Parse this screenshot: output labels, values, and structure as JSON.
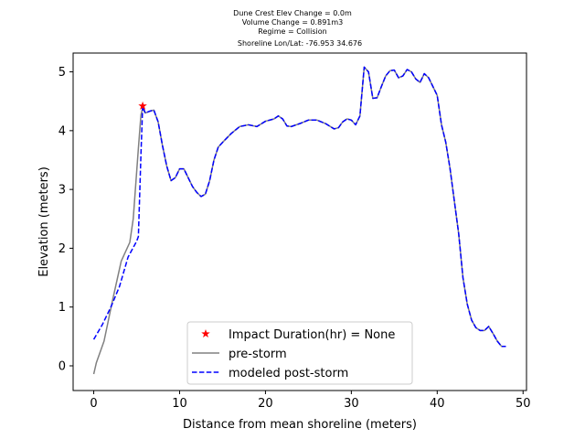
{
  "chart_data": {
    "type": "line",
    "title_lines": [
      "Dune Crest Elev Change = 0.0m",
      "Volume Change = 0.891m3",
      "Regime = Collision",
      "Shoreline Lon/Lat: -76.953 34.676"
    ],
    "xlabel": "Distance from mean shoreline (meters)",
    "ylabel": "Elevation (meters)",
    "xlim": [
      -2.4,
      50.4
    ],
    "ylim": [
      -0.42,
      5.32
    ],
    "xticks": [
      0,
      10,
      20,
      30,
      40,
      50
    ],
    "yticks": [
      0,
      1,
      2,
      3,
      4,
      5
    ],
    "grid": false,
    "legend": {
      "placement": "lower-center",
      "entries": [
        {
          "label": "Impact Duration(hr) = None",
          "marker": "star",
          "color": "#ff0000"
        },
        {
          "label": "pre-storm",
          "style": "solid",
          "color": "#808080"
        },
        {
          "label": "modeled post-storm",
          "style": "dashed",
          "color": "#0000ff"
        }
      ]
    },
    "impact_point": {
      "x": 5.7,
      "y": 4.42
    },
    "series": [
      {
        "name": "pre-storm",
        "color": "#808080",
        "style": "solid",
        "points": [
          [
            0,
            -0.14
          ],
          [
            0.3,
            0.05
          ],
          [
            1.2,
            0.42
          ],
          [
            2.2,
            1.12
          ],
          [
            3.2,
            1.78
          ],
          [
            4.2,
            2.1
          ],
          [
            4.6,
            2.5
          ],
          [
            5.2,
            3.7
          ],
          [
            5.5,
            4.27
          ],
          [
            5.7,
            4.38
          ],
          [
            6.0,
            4.3
          ],
          [
            6.5,
            4.33
          ],
          [
            7.0,
            4.35
          ],
          [
            7.5,
            4.15
          ],
          [
            8.0,
            3.75
          ],
          [
            8.5,
            3.4
          ],
          [
            9.0,
            3.15
          ],
          [
            9.5,
            3.2
          ],
          [
            10.0,
            3.35
          ],
          [
            10.5,
            3.35
          ],
          [
            11.0,
            3.2
          ],
          [
            11.5,
            3.05
          ],
          [
            12.0,
            2.95
          ],
          [
            12.5,
            2.88
          ],
          [
            13.0,
            2.92
          ],
          [
            13.5,
            3.15
          ],
          [
            14.0,
            3.5
          ],
          [
            14.5,
            3.72
          ],
          [
            15.0,
            3.8
          ],
          [
            16.0,
            3.95
          ],
          [
            17.0,
            4.07
          ],
          [
            18.0,
            4.1
          ],
          [
            19.0,
            4.07
          ],
          [
            20.0,
            4.16
          ],
          [
            21.0,
            4.2
          ],
          [
            21.5,
            4.25
          ],
          [
            22.0,
            4.2
          ],
          [
            22.5,
            4.08
          ],
          [
            23.0,
            4.07
          ],
          [
            24.0,
            4.12
          ],
          [
            25.0,
            4.18
          ],
          [
            26.0,
            4.18
          ],
          [
            27.0,
            4.12
          ],
          [
            28.0,
            4.03
          ],
          [
            28.5,
            4.05
          ],
          [
            29.0,
            4.15
          ],
          [
            29.5,
            4.2
          ],
          [
            30.0,
            4.18
          ],
          [
            30.5,
            4.1
          ],
          [
            31.0,
            4.25
          ],
          [
            31.5,
            5.08
          ],
          [
            32.0,
            5.0
          ],
          [
            32.5,
            4.55
          ],
          [
            33.0,
            4.56
          ],
          [
            33.5,
            4.75
          ],
          [
            34.0,
            4.93
          ],
          [
            34.5,
            5.02
          ],
          [
            35.0,
            5.03
          ],
          [
            35.5,
            4.9
          ],
          [
            36.0,
            4.93
          ],
          [
            36.5,
            5.04
          ],
          [
            37.0,
            5.0
          ],
          [
            37.5,
            4.88
          ],
          [
            38.0,
            4.82
          ],
          [
            38.5,
            4.97
          ],
          [
            39.0,
            4.9
          ],
          [
            39.5,
            4.75
          ],
          [
            40.0,
            4.6
          ],
          [
            40.5,
            4.1
          ],
          [
            41.0,
            3.8
          ],
          [
            41.5,
            3.35
          ],
          [
            42.0,
            2.8
          ],
          [
            42.5,
            2.25
          ],
          [
            43.0,
            1.5
          ],
          [
            43.5,
            1.05
          ],
          [
            44.0,
            0.78
          ],
          [
            44.5,
            0.65
          ],
          [
            45.0,
            0.6
          ],
          [
            45.5,
            0.6
          ],
          [
            46.0,
            0.67
          ],
          [
            46.5,
            0.55
          ],
          [
            47.0,
            0.42
          ],
          [
            47.5,
            0.33
          ],
          [
            48.0,
            0.33
          ]
        ]
      },
      {
        "name": "modeled post-storm",
        "color": "#0000ff",
        "style": "dashed",
        "points": [
          [
            0,
            0.45
          ],
          [
            1.0,
            0.7
          ],
          [
            2.0,
            1.0
          ],
          [
            3.0,
            1.35
          ],
          [
            4.0,
            1.85
          ],
          [
            5.0,
            2.12
          ],
          [
            5.2,
            2.2
          ],
          [
            5.5,
            3.6
          ],
          [
            5.7,
            4.42
          ],
          [
            6.0,
            4.3
          ],
          [
            6.5,
            4.33
          ],
          [
            7.0,
            4.35
          ],
          [
            7.5,
            4.15
          ],
          [
            8.0,
            3.75
          ],
          [
            8.5,
            3.4
          ],
          [
            9.0,
            3.15
          ],
          [
            9.5,
            3.2
          ],
          [
            10.0,
            3.35
          ],
          [
            10.5,
            3.35
          ],
          [
            11.0,
            3.2
          ],
          [
            11.5,
            3.05
          ],
          [
            12.0,
            2.95
          ],
          [
            12.5,
            2.88
          ],
          [
            13.0,
            2.92
          ],
          [
            13.5,
            3.15
          ],
          [
            14.0,
            3.5
          ],
          [
            14.5,
            3.72
          ],
          [
            15.0,
            3.8
          ],
          [
            16.0,
            3.95
          ],
          [
            17.0,
            4.07
          ],
          [
            18.0,
            4.1
          ],
          [
            19.0,
            4.07
          ],
          [
            20.0,
            4.16
          ],
          [
            21.0,
            4.2
          ],
          [
            21.5,
            4.25
          ],
          [
            22.0,
            4.2
          ],
          [
            22.5,
            4.08
          ],
          [
            23.0,
            4.07
          ],
          [
            24.0,
            4.12
          ],
          [
            25.0,
            4.18
          ],
          [
            26.0,
            4.18
          ],
          [
            27.0,
            4.12
          ],
          [
            28.0,
            4.03
          ],
          [
            28.5,
            4.05
          ],
          [
            29.0,
            4.15
          ],
          [
            29.5,
            4.2
          ],
          [
            30.0,
            4.18
          ],
          [
            30.5,
            4.1
          ],
          [
            31.0,
            4.25
          ],
          [
            31.5,
            5.08
          ],
          [
            32.0,
            5.0
          ],
          [
            32.5,
            4.55
          ],
          [
            33.0,
            4.56
          ],
          [
            33.5,
            4.75
          ],
          [
            34.0,
            4.93
          ],
          [
            34.5,
            5.02
          ],
          [
            35.0,
            5.03
          ],
          [
            35.5,
            4.9
          ],
          [
            36.0,
            4.93
          ],
          [
            36.5,
            5.04
          ],
          [
            37.0,
            5.0
          ],
          [
            37.5,
            4.88
          ],
          [
            38.0,
            4.82
          ],
          [
            38.5,
            4.97
          ],
          [
            39.0,
            4.9
          ],
          [
            39.5,
            4.75
          ],
          [
            40.0,
            4.6
          ],
          [
            40.5,
            4.1
          ],
          [
            41.0,
            3.8
          ],
          [
            41.5,
            3.35
          ],
          [
            42.0,
            2.8
          ],
          [
            42.5,
            2.25
          ],
          [
            43.0,
            1.5
          ],
          [
            43.5,
            1.05
          ],
          [
            44.0,
            0.78
          ],
          [
            44.5,
            0.65
          ],
          [
            45.0,
            0.6
          ],
          [
            45.5,
            0.6
          ],
          [
            46.0,
            0.67
          ],
          [
            46.5,
            0.55
          ],
          [
            47.0,
            0.42
          ],
          [
            47.5,
            0.33
          ],
          [
            48.0,
            0.33
          ]
        ]
      }
    ]
  }
}
